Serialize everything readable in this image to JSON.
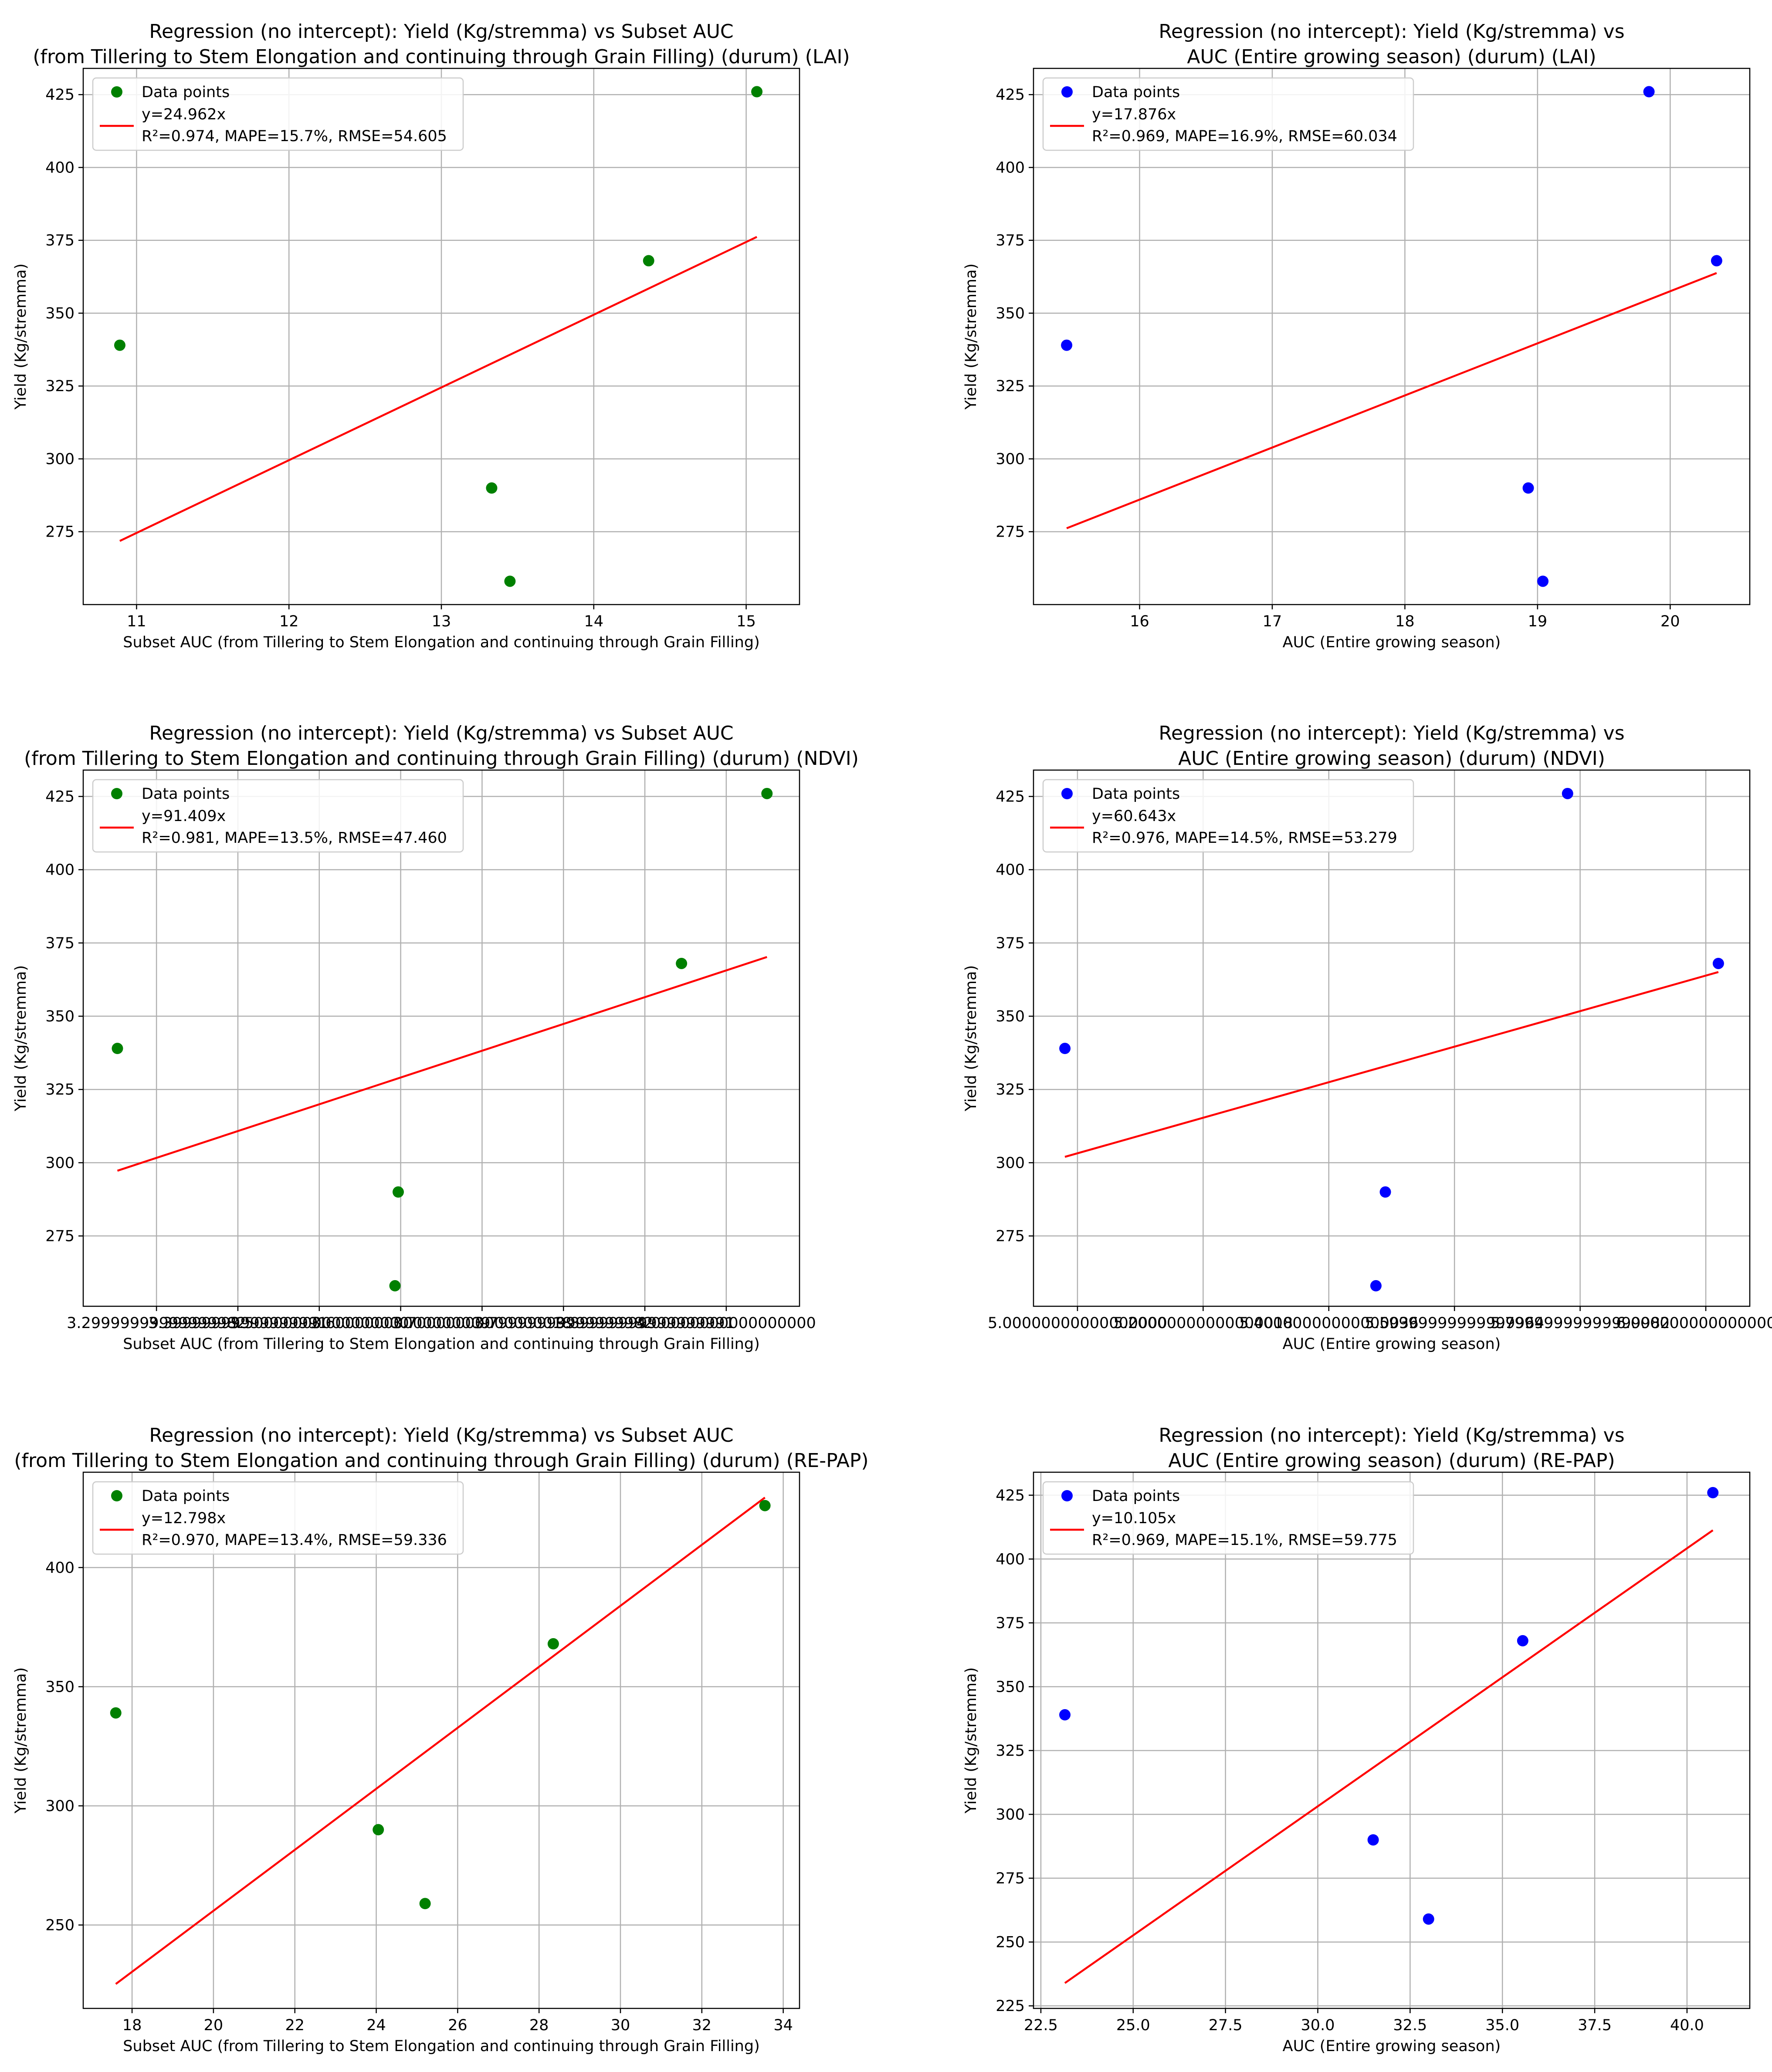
{
  "legend": {
    "points_label": "Data points"
  },
  "chart_data": [
    {
      "type": "scatter",
      "title_lines": [
        "Regression (no intercept): Yield (Kg/stremma) vs Subset AUC",
        "(from Tillering to Stem Elongation and continuing through Grain Filling) (durum) (LAI)"
      ],
      "xlabel": "Subset AUC (from Tillering to Stem Elongation and continuing through Grain Filling)",
      "ylabel": "Yield (Kg/stremma)",
      "xlim": [
        10.65,
        15.35
      ],
      "ylim": [
        250,
        434
      ],
      "xticks": [
        11,
        12,
        13,
        14,
        15
      ],
      "yticks": [
        275,
        300,
        325,
        350,
        375,
        400,
        425
      ],
      "points": [
        [
          10.89,
          339
        ],
        [
          13.33,
          290
        ],
        [
          13.45,
          258
        ],
        [
          14.36,
          368
        ],
        [
          15.07,
          426
        ]
      ],
      "fit_x": [
        10.89,
        15.07
      ],
      "slope": 24.962,
      "equation": "y=24.962x",
      "stats": "R²=0.974, MAPE=15.7%, RMSE=54.605",
      "point_color": "#008000",
      "line_color": "#ff0000",
      "legend_position": "upper-left"
    },
    {
      "type": "scatter",
      "title_lines": [
        "Regression (no intercept): Yield (Kg/stremma) vs",
        "AUC (Entire growing season) (durum) (LAI)"
      ],
      "xlabel": "AUC (Entire growing season)",
      "ylabel": "Yield (Kg/stremma)",
      "xlim": [
        15.2,
        20.6
      ],
      "ylim": [
        250,
        434
      ],
      "xticks": [
        16,
        17,
        18,
        19,
        20
      ],
      "yticks": [
        275,
        300,
        325,
        350,
        375,
        400,
        425
      ],
      "points": [
        [
          15.45,
          339
        ],
        [
          18.93,
          290
        ],
        [
          19.04,
          258
        ],
        [
          19.84,
          426
        ],
        [
          20.35,
          368
        ]
      ],
      "fit_x": [
        15.45,
        20.35
      ],
      "slope": 17.876,
      "equation": "y=17.876x",
      "stats": "R²=0.969, MAPE=16.9%, RMSE=60.034",
      "point_color": "#0000ff",
      "line_color": "#ff0000",
      "legend_position": "upper-left"
    },
    {
      "type": "scatter",
      "title_lines": [
        "Regression (no intercept): Yield (Kg/stremma) vs Subset AUC",
        "(from Tillering to Stem Elongation and continuing through Grain Filling) (durum) (NDVI)"
      ],
      "xlabel": "Subset AUC (from Tillering to Stem Elongation and continuing through Grain Filling)",
      "ylabel": "Yield (Kg/stremma)",
      "xlim": [
        3.21,
        4.09
      ],
      "ylim": [
        251,
        434
      ],
      "xticks": [
        3.3,
        3.4,
        3.5,
        3.6,
        3.7,
        3.8,
        3.9,
        4.0
      ],
      "yticks": [
        275,
        300,
        325,
        350,
        375,
        400,
        425
      ],
      "points": [
        [
          3.252,
          339
        ],
        [
          3.593,
          258
        ],
        [
          3.597,
          290
        ],
        [
          3.945,
          368
        ],
        [
          4.05,
          426
        ]
      ],
      "fit_x": [
        3.252,
        4.05
      ],
      "slope": 91.409,
      "equation": "y=91.409x",
      "stats": "R²=0.981, MAPE=13.5%, RMSE=47.460",
      "point_color": "#008000",
      "line_color": "#ff0000",
      "legend_position": "upper-left"
    },
    {
      "type": "scatter",
      "title_lines": [
        "Regression (no intercept): Yield (Kg/stremma) vs",
        "AUC (Entire growing season) (durum) (NDVI)"
      ],
      "xlabel": "AUC (Entire growing season)",
      "ylabel": "Yield (Kg/stremma)",
      "xlim": [
        4.93,
        6.07
      ],
      "ylim": [
        251,
        434
      ],
      "xticks": [
        5.0,
        5.2,
        5.4,
        5.6,
        5.8,
        6.0
      ],
      "yticks": [
        275,
        300,
        325,
        350,
        375,
        400,
        425
      ],
      "points": [
        [
          4.98,
          339
        ],
        [
          5.475,
          258
        ],
        [
          5.49,
          290
        ],
        [
          5.78,
          426
        ],
        [
          6.02,
          368
        ]
      ],
      "fit_x": [
        4.98,
        6.02
      ],
      "slope": 60.643,
      "equation": "y=60.643x",
      "stats": "R²=0.976, MAPE=14.5%, RMSE=53.279",
      "point_color": "#0000ff",
      "line_color": "#ff0000",
      "legend_position": "upper-left"
    },
    {
      "type": "scatter",
      "title_lines": [
        "Regression (no intercept): Yield (Kg/stremma) vs Subset AUC",
        "(from Tillering to Stem Elongation and continuing through Grain Filling) (durum) (RE-PAP)"
      ],
      "xlabel": "Subset AUC (from Tillering to Stem Elongation and continuing through Grain Filling)",
      "ylabel": "Yield (Kg/stremma)",
      "xlim": [
        16.8,
        34.4
      ],
      "ylim": [
        215,
        440
      ],
      "xticks": [
        18,
        20,
        22,
        24,
        26,
        28,
        30,
        32,
        34
      ],
      "yticks": [
        250,
        300,
        350,
        400
      ],
      "points": [
        [
          17.6,
          339
        ],
        [
          24.05,
          290
        ],
        [
          25.2,
          259
        ],
        [
          28.35,
          368
        ],
        [
          33.55,
          426
        ]
      ],
      "fit_x": [
        17.6,
        33.55
      ],
      "slope": 12.798,
      "equation": "y=12.798x",
      "stats": "R²=0.970, MAPE=13.4%, RMSE=59.336",
      "point_color": "#008000",
      "line_color": "#ff0000",
      "legend_position": "upper-left"
    },
    {
      "type": "scatter",
      "title_lines": [
        "Regression (no intercept): Yield (Kg/stremma) vs",
        "AUC (Entire growing season) (durum) (RE-PAP)"
      ],
      "xlabel": "AUC (Entire growing season)",
      "ylabel": "Yield (Kg/stremma)",
      "xlim": [
        22.3,
        41.7
      ],
      "ylim": [
        224,
        434
      ],
      "xticks": [
        22.5,
        25.0,
        27.5,
        30.0,
        32.5,
        35.0,
        37.5,
        40.0
      ],
      "yticks": [
        225,
        250,
        275,
        300,
        325,
        350,
        375,
        400,
        425
      ],
      "points": [
        [
          23.15,
          339
        ],
        [
          31.5,
          290
        ],
        [
          33.0,
          259
        ],
        [
          35.55,
          368
        ],
        [
          40.7,
          426
        ]
      ],
      "fit_x": [
        23.15,
        40.7
      ],
      "slope": 10.105,
      "equation": "y=10.105x",
      "stats": "R²=0.969, MAPE=15.1%, RMSE=59.775",
      "point_color": "#0000ff",
      "line_color": "#ff0000",
      "legend_position": "upper-left"
    }
  ]
}
